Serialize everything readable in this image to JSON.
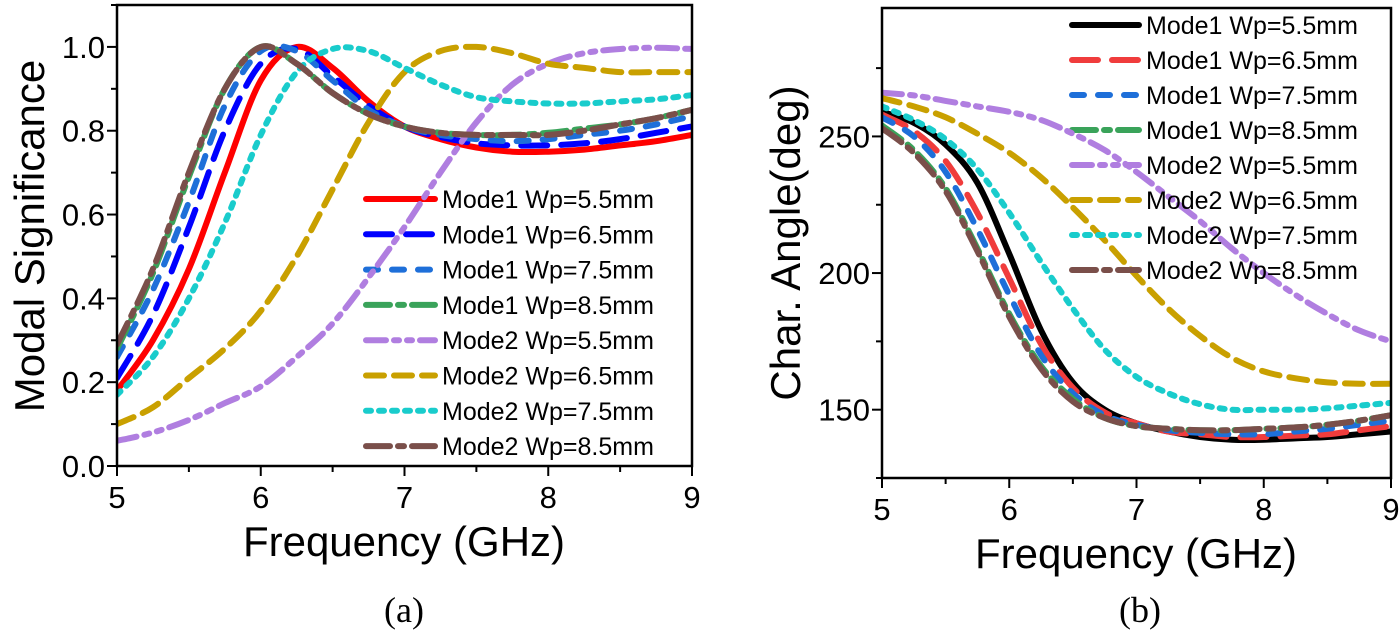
{
  "chart_data": [
    {
      "type": "line",
      "caption": "(a)",
      "xlabel": "Frequency (GHz)",
      "ylabel": "Modal Significance",
      "xlim": [
        5,
        9
      ],
      "ylim": [
        0,
        1.1
      ],
      "xticks": [
        "5",
        "6",
        "7",
        "8",
        "9"
      ],
      "yticks": [
        "0.0",
        "0.2",
        "0.4",
        "0.6",
        "0.8",
        "1.0"
      ],
      "grid": false,
      "legend_position": "lower-right",
      "x": [
        5,
        5.25,
        5.5,
        5.75,
        6,
        6.25,
        6.5,
        6.75,
        7,
        7.25,
        7.5,
        7.75,
        8,
        8.25,
        8.5,
        8.75,
        9
      ],
      "series": [
        {
          "name": "Mode1 Wp=5.5mm",
          "color": "#ff0000",
          "style": "solid",
          "values": [
            0.18,
            0.3,
            0.47,
            0.7,
            0.92,
            1.0,
            0.95,
            0.87,
            0.81,
            0.78,
            0.76,
            0.75,
            0.75,
            0.755,
            0.765,
            0.775,
            0.79
          ]
        },
        {
          "name": "Mode1 Wp=6.5mm",
          "color": "#0000ff",
          "style": "dash",
          "values": [
            0.21,
            0.36,
            0.57,
            0.8,
            0.96,
            0.995,
            0.93,
            0.86,
            0.81,
            0.785,
            0.77,
            0.765,
            0.765,
            0.77,
            0.78,
            0.795,
            0.81
          ]
        },
        {
          "name": "Mode1 Wp=7.5mm",
          "color": "#1e6fd9",
          "style": "shortdash",
          "values": [
            0.26,
            0.42,
            0.63,
            0.86,
            0.99,
            0.99,
            0.92,
            0.85,
            0.81,
            0.79,
            0.78,
            0.775,
            0.78,
            0.79,
            0.8,
            0.815,
            0.835
          ]
        },
        {
          "name": "Mode1 Wp=8.5mm",
          "color": "#3aa35a",
          "style": "dashdot",
          "values": [
            0.28,
            0.46,
            0.69,
            0.9,
            1.0,
            0.96,
            0.89,
            0.84,
            0.81,
            0.795,
            0.79,
            0.79,
            0.795,
            0.805,
            0.815,
            0.83,
            0.85
          ]
        },
        {
          "name": "Mode2 Wp=5.5mm",
          "color": "#b07ee0",
          "style": "dashdotdot",
          "values": [
            0.06,
            0.08,
            0.11,
            0.15,
            0.19,
            0.26,
            0.34,
            0.45,
            0.57,
            0.7,
            0.82,
            0.91,
            0.96,
            0.985,
            0.995,
            0.998,
            0.995
          ]
        },
        {
          "name": "Mode2 Wp=6.5mm",
          "color": "#c9a000",
          "style": "mediumdash",
          "values": [
            0.1,
            0.14,
            0.21,
            0.28,
            0.37,
            0.5,
            0.66,
            0.82,
            0.94,
            0.99,
            1.0,
            0.985,
            0.96,
            0.95,
            0.94,
            0.94,
            0.94
          ]
        },
        {
          "name": "Mode2 Wp=7.5mm",
          "color": "#19cccc",
          "style": "dot",
          "values": [
            0.17,
            0.26,
            0.4,
            0.58,
            0.79,
            0.94,
            0.995,
            0.99,
            0.95,
            0.91,
            0.88,
            0.87,
            0.865,
            0.865,
            0.87,
            0.875,
            0.885
          ]
        },
        {
          "name": "Mode2 Wp=8.5mm",
          "color": "#7a4f4a",
          "style": "dashdot",
          "values": [
            0.29,
            0.47,
            0.7,
            0.9,
            1.0,
            0.96,
            0.89,
            0.84,
            0.81,
            0.795,
            0.79,
            0.79,
            0.79,
            0.8,
            0.815,
            0.83,
            0.85
          ]
        }
      ]
    },
    {
      "type": "line",
      "caption": "(b)",
      "xlabel": "Frequency (GHz)",
      "ylabel": "Char. Angle(deg)",
      "xlim": [
        5,
        9
      ],
      "ylim": [
        125,
        297
      ],
      "xticks": [
        "5",
        "6",
        "7",
        "8",
        "9"
      ],
      "yticks": [
        "150",
        "200",
        "250"
      ],
      "grid": false,
      "legend_position": "top-right",
      "x": [
        5,
        5.25,
        5.5,
        5.75,
        6,
        6.25,
        6.5,
        6.75,
        7,
        7.25,
        7.5,
        7.75,
        8,
        8.25,
        8.5,
        8.75,
        9
      ],
      "series": [
        {
          "name": "Mode1 Wp=5.5mm",
          "color": "#000000",
          "style": "solid",
          "values": [
            259,
            255,
            247,
            233,
            207,
            179,
            160,
            150,
            145,
            142,
            140,
            139,
            139,
            139.5,
            140,
            141,
            142
          ]
        },
        {
          "name": "Mode1 Wp=6.5mm",
          "color": "#f03c3c",
          "style": "dash",
          "values": [
            258,
            252,
            241,
            222,
            198,
            174,
            158,
            149,
            145,
            142,
            141,
            140,
            140,
            140.5,
            141,
            142.5,
            144
          ]
        },
        {
          "name": "Mode1 Wp=7.5mm",
          "color": "#1e6fd9",
          "style": "shortdash",
          "values": [
            257,
            250,
            237,
            216,
            192,
            170,
            156,
            148,
            144.5,
            142.5,
            141.5,
            141,
            141,
            142,
            143,
            144.5,
            146
          ]
        },
        {
          "name": "Mode1 Wp=8.5mm",
          "color": "#3aa35a",
          "style": "dashdot",
          "values": [
            254,
            245,
            231,
            209,
            185,
            166,
            154,
            147,
            144,
            143,
            142.5,
            142.5,
            143,
            143.5,
            144.5,
            146,
            148
          ]
        },
        {
          "name": "Mode2 Wp=5.5mm",
          "color": "#b07ee0",
          "style": "dashdotdot",
          "values": [
            266,
            265,
            263,
            261,
            259,
            256,
            251,
            245,
            237,
            228,
            219,
            209,
            200,
            192,
            185,
            179,
            175
          ]
        },
        {
          "name": "Mode2 Wp=6.5mm",
          "color": "#c9a000",
          "style": "mediumdash",
          "values": [
            264,
            261,
            257,
            251,
            244,
            235,
            224,
            212,
            199,
            187,
            177,
            169,
            164,
            161.5,
            160,
            159.5,
            159.5
          ]
        },
        {
          "name": "Mode2 Wp=7.5mm",
          "color": "#19cccc",
          "style": "dot",
          "values": [
            261,
            256,
            249,
            238,
            222,
            204,
            187,
            172,
            162,
            156,
            152,
            150,
            150,
            150,
            150.5,
            151.5,
            152.5
          ]
        },
        {
          "name": "Mode2 Wp=8.5mm",
          "color": "#7a4f4a",
          "style": "dashdot",
          "values": [
            253,
            244,
            230,
            208,
            184,
            165,
            153,
            147,
            144,
            143,
            142.5,
            142.5,
            143,
            143.5,
            144.5,
            146,
            148
          ]
        }
      ]
    }
  ]
}
